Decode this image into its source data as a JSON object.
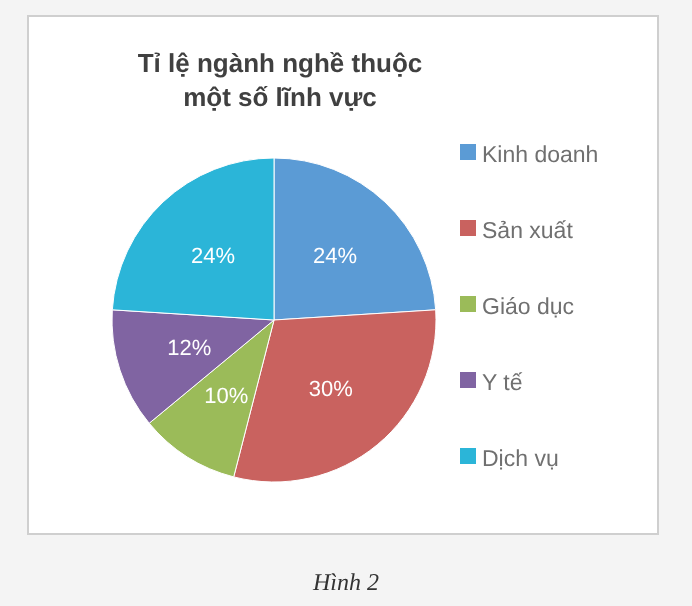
{
  "chart_data": {
    "type": "pie",
    "title": "Tỉ lệ ngành nghề thuộc một số lĩnh vực",
    "categories": [
      "Kinh doanh",
      "Sản xuất",
      "Giáo dục",
      "Y tế",
      "Dịch vụ"
    ],
    "values": [
      24,
      30,
      10,
      12,
      24
    ],
    "colors": [
      "#5b9bd5",
      "#c9625f",
      "#9bbb59",
      "#8064a2",
      "#2bb5d8"
    ],
    "value_labels": [
      "24%",
      "30%",
      "10%",
      "12%",
      "24%"
    ],
    "legend": "right",
    "annotations": [
      "Hình 2"
    ]
  }
}
